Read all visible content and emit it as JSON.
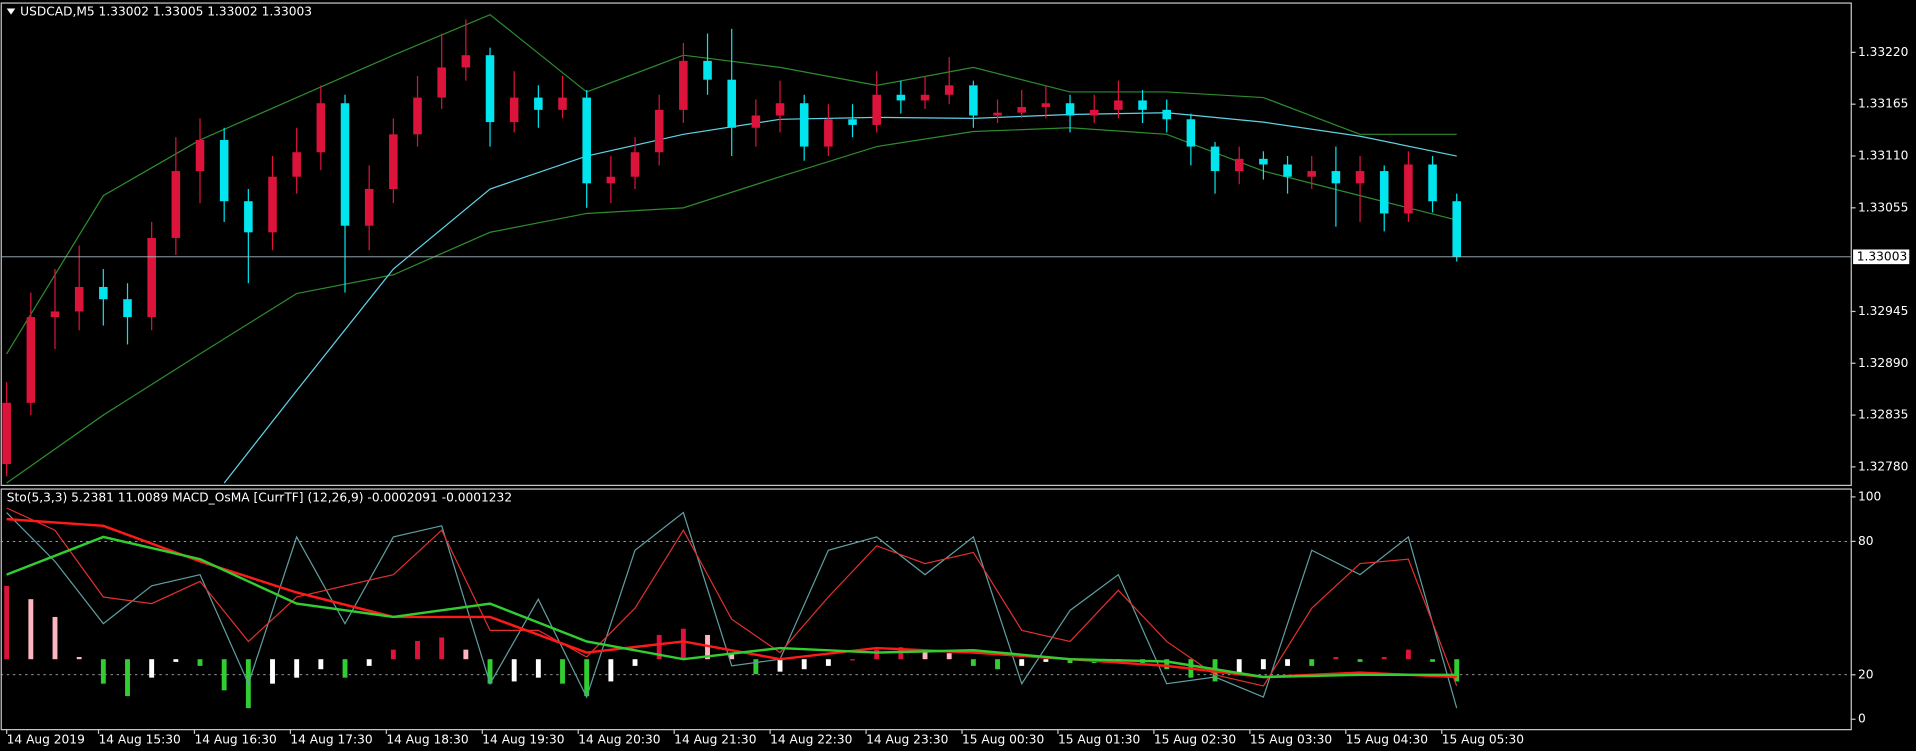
{
  "chart_data": [
    {
      "type": "candlestick",
      "title": "USDCAD,M5  1.33002 1.33005 1.33002 1.33003",
      "bull_color": "#dc143c",
      "bear_color": "#00e5ee",
      "open": [
        1.32783,
        1.32848,
        1.32939,
        1.32945,
        1.32971,
        1.32958,
        1.32939,
        1.33023,
        1.33094,
        1.33127,
        1.33062,
        1.33029,
        1.33088,
        1.33114,
        1.33166,
        1.33036,
        1.33075,
        1.33133,
        1.33172,
        1.33204,
        1.33217,
        1.33146,
        1.33172,
        1.33159,
        1.33172,
        1.33081,
        1.33088,
        1.33114,
        1.33159,
        1.33211,
        1.33191,
        1.3314,
        1.33153,
        1.33166,
        1.3312,
        1.33149,
        1.33143,
        1.33175,
        1.33169,
        1.33175,
        1.33185,
        1.33153,
        1.33156,
        1.33162,
        1.33166,
        1.33153,
        1.33159,
        1.33169,
        1.33159,
        1.33149,
        1.3312,
        1.33094,
        1.33107,
        1.33101,
        1.33088,
        1.33094,
        1.33081,
        1.33094,
        1.33049,
        1.33101,
        1.33062
      ],
      "high": [
        1.3287,
        1.32965,
        1.3299,
        1.33015,
        1.3299,
        1.32975,
        1.3304,
        1.3313,
        1.3315,
        1.3314,
        1.33075,
        1.3311,
        1.3314,
        1.33185,
        1.33175,
        1.331,
        1.3315,
        1.33195,
        1.3324,
        1.33255,
        1.33225,
        1.332,
        1.33185,
        1.33195,
        1.3318,
        1.3311,
        1.3313,
        1.33175,
        1.3323,
        1.3324,
        1.33245,
        1.3317,
        1.3319,
        1.33175,
        1.33165,
        1.33165,
        1.332,
        1.3319,
        1.33195,
        1.33215,
        1.3319,
        1.3317,
        1.3318,
        1.33185,
        1.33175,
        1.33175,
        1.3319,
        1.3318,
        1.3317,
        1.33155,
        1.33125,
        1.3312,
        1.33115,
        1.3311,
        1.3311,
        1.3312,
        1.3311,
        1.331,
        1.33115,
        1.3311,
        1.3307
      ],
      "low": [
        1.3277,
        1.32835,
        1.32905,
        1.32925,
        1.3293,
        1.3291,
        1.32925,
        1.33005,
        1.3306,
        1.3304,
        1.32975,
        1.3301,
        1.3307,
        1.33095,
        1.32965,
        1.3301,
        1.3306,
        1.3312,
        1.3316,
        1.3319,
        1.3312,
        1.33135,
        1.3314,
        1.3315,
        1.33055,
        1.3306,
        1.33075,
        1.331,
        1.33145,
        1.33175,
        1.3311,
        1.3312,
        1.33135,
        1.33105,
        1.3311,
        1.3313,
        1.33135,
        1.33155,
        1.3316,
        1.33165,
        1.3314,
        1.33145,
        1.3315,
        1.3315,
        1.33135,
        1.33145,
        1.3315,
        1.33145,
        1.33135,
        1.331,
        1.3307,
        1.3308,
        1.33085,
        1.3307,
        1.33075,
        1.33035,
        1.3304,
        1.3303,
        1.3304,
        1.3305,
        1.32998
      ],
      "close": [
        1.32848,
        1.32939,
        1.32945,
        1.32971,
        1.32958,
        1.32939,
        1.33023,
        1.33094,
        1.33127,
        1.33062,
        1.33029,
        1.33088,
        1.33114,
        1.33166,
        1.33036,
        1.33075,
        1.33133,
        1.33172,
        1.33204,
        1.33217,
        1.33146,
        1.33172,
        1.33159,
        1.33172,
        1.33081,
        1.33088,
        1.33114,
        1.33159,
        1.33211,
        1.33191,
        1.3314,
        1.33153,
        1.33166,
        1.3312,
        1.33149,
        1.33143,
        1.33175,
        1.33169,
        1.33175,
        1.33185,
        1.33153,
        1.33156,
        1.33162,
        1.33166,
        1.33153,
        1.33159,
        1.33169,
        1.33159,
        1.33149,
        1.3312,
        1.33094,
        1.33107,
        1.33101,
        1.33088,
        1.33094,
        1.33081,
        1.33094,
        1.33049,
        1.33101,
        1.33062,
        1.33003
      ],
      "lines": [
        {
          "color": "#2e8b2e",
          "x": [
            0,
            4,
            8,
            12,
            16,
            20,
            24,
            28,
            32,
            36,
            40,
            44,
            48,
            52,
            56,
            60
          ],
          "values": [
            1.329,
            1.33068,
            1.33127,
            1.33172,
            1.33217,
            1.3326,
            1.33178,
            1.33217,
            1.33204,
            1.33185,
            1.33204,
            1.33178,
            1.33178,
            1.33172,
            1.33133,
            1.33133
          ]
        },
        {
          "color": "#2e8b2e",
          "x": [
            0,
            4,
            8,
            12,
            16,
            20,
            24,
            28,
            32,
            36,
            40,
            44,
            48,
            52,
            56,
            60
          ],
          "values": [
            1.32763,
            1.32835,
            1.329,
            1.32964,
            1.32984,
            1.33029,
            1.33049,
            1.33055,
            1.33088,
            1.3312,
            1.33136,
            1.3314,
            1.33133,
            1.33094,
            1.33068,
            1.33042
          ]
        },
        {
          "color": "#5fd3e6",
          "x": [
            9,
            12,
            16,
            20,
            24,
            28,
            32,
            36,
            40,
            44,
            48,
            52,
            56,
            60
          ],
          "values": [
            1.32763,
            1.32861,
            1.3299,
            1.33075,
            1.3311,
            1.33133,
            1.33149,
            1.33151,
            1.3315,
            1.33154,
            1.33156,
            1.33146,
            1.33131,
            1.3311
          ]
        }
      ],
      "last_price": 1.33003,
      "xlim": [
        -0.25,
        76.3
      ],
      "ylim": [
        1.32761,
        1.33273
      ],
      "yticks": [
        {
          "value": 1.3322,
          "label": "1.33220"
        },
        {
          "value": 1.33165,
          "label": "1.33165"
        },
        {
          "value": 1.3311,
          "label": "1.33110"
        },
        {
          "value": 1.33055,
          "label": "1.33055"
        },
        {
          "value": 1.32945,
          "label": "1.32945"
        },
        {
          "value": 1.3289,
          "label": "1.32890"
        },
        {
          "value": 1.32835,
          "label": "1.32835"
        },
        {
          "value": 1.3278,
          "label": "1.32780"
        }
      ],
      "xticks": [
        {
          "value": 0,
          "label": "14 Aug 2019"
        },
        {
          "value": 3.8,
          "label": "14 Aug 15:30"
        },
        {
          "value": 7.77,
          "label": "14 Aug 16:30"
        },
        {
          "value": 11.74,
          "label": "14 Aug 17:30"
        },
        {
          "value": 15.71,
          "label": "14 Aug 18:30"
        },
        {
          "value": 19.68,
          "label": "14 Aug 19:30"
        },
        {
          "value": 23.65,
          "label": "14 Aug 20:30"
        },
        {
          "value": 27.62,
          "label": "14 Aug 21:30"
        },
        {
          "value": 31.59,
          "label": "14 Aug 22:30"
        },
        {
          "value": 35.56,
          "label": "14 Aug 23:30"
        },
        {
          "value": 39.53,
          "label": "15 Aug 00:30"
        },
        {
          "value": 43.5,
          "label": "15 Aug 01:30"
        },
        {
          "value": 47.47,
          "label": "15 Aug 02:30"
        },
        {
          "value": 51.44,
          "label": "15 Aug 03:30"
        },
        {
          "value": 55.41,
          "label": "15 Aug 04:30"
        },
        {
          "value": 59.38,
          "label": "15 Aug 05:30"
        }
      ]
    },
    {
      "type": "line",
      "title": "Sto(5,3,3) 5.2381 11.0089  MACD_OsMA [CurrTF] (12,26,9) -0.0002091 -0.0001232",
      "histogram": {
        "baseline": 27,
        "colors": {
          "up": "#dc143c",
          "up_fall": "#ffb6c1",
          "down": "#32cd32",
          "down_rise": "#ffffff"
        },
        "values": [
          60,
          54,
          46,
          28,
          16,
          10.4,
          18.7,
          25.8,
          24,
          13,
          5,
          16,
          18.7,
          22.5,
          18.7,
          24,
          31.3,
          35.2,
          36.8,
          31.3,
          16,
          17,
          18.7,
          16,
          10.4,
          17,
          24,
          37.9,
          40.7,
          37.9,
          29.7,
          20.3,
          21.4,
          22.5,
          24,
          27,
          31.3,
          32.4,
          31.3,
          29.7,
          24,
          22.5,
          24,
          25.8,
          25.3,
          25.3,
          25.8,
          25.3,
          22.5,
          18.7,
          17,
          19.8,
          22.5,
          24,
          24,
          28,
          25.8,
          28,
          31.3,
          25.8,
          17
        ]
      },
      "lines": [
        {
          "color": "#5f9ea0",
          "width": 1,
          "x": [
            0,
            2,
            4,
            6,
            8,
            10,
            12,
            14,
            16,
            18,
            20,
            22,
            24,
            26,
            28,
            30,
            32,
            34,
            36,
            38,
            40,
            42,
            44,
            46,
            48,
            50,
            52,
            54,
            56,
            58,
            60
          ],
          "values": [
            93,
            71,
            43,
            60,
            65,
            16,
            82,
            43,
            82,
            87,
            16,
            54,
            10,
            76,
            93,
            24,
            27,
            76,
            82,
            65,
            82,
            16,
            49,
            65,
            16,
            19,
            10,
            76,
            65,
            82,
            5
          ]
        },
        {
          "color": "#e0302f",
          "width": 1,
          "x": [
            0,
            2,
            4,
            6,
            8,
            10,
            12,
            14,
            16,
            18,
            20,
            22,
            24,
            26,
            28,
            30,
            32,
            34,
            36,
            38,
            40,
            42,
            44,
            46,
            48,
            50,
            52,
            54,
            56,
            58,
            60
          ],
          "values": [
            95,
            85,
            55,
            52,
            62,
            35,
            55,
            60,
            65,
            85,
            40,
            40,
            28,
            50,
            85,
            45,
            30,
            55,
            78,
            70,
            75,
            40,
            35,
            58,
            35,
            20,
            15,
            50,
            70,
            72,
            15
          ]
        },
        {
          "color": "#ff1a1a",
          "width": 2,
          "x": [
            0,
            4,
            8,
            12,
            16,
            20,
            24,
            28,
            32,
            36,
            40,
            44,
            48,
            52,
            56,
            60
          ],
          "values": [
            90,
            87,
            71,
            57,
            46,
            46,
            30,
            35,
            27,
            32,
            30,
            27,
            24,
            19,
            21,
            19
          ]
        },
        {
          "color": "#32cd32",
          "width": 2,
          "x": [
            0,
            4,
            8,
            12,
            16,
            20,
            24,
            28,
            32,
            36,
            40,
            44,
            48,
            52,
            56,
            60
          ],
          "values": [
            65,
            82,
            72,
            52,
            46,
            52,
            35,
            27,
            32,
            30,
            31,
            27,
            26,
            19,
            20,
            20
          ]
        }
      ],
      "grid": true,
      "xlim": [
        -0.25,
        76.3
      ],
      "ylim": [
        -4.4,
        103.8
      ],
      "yticks": [
        0,
        20,
        80,
        100
      ]
    }
  ]
}
